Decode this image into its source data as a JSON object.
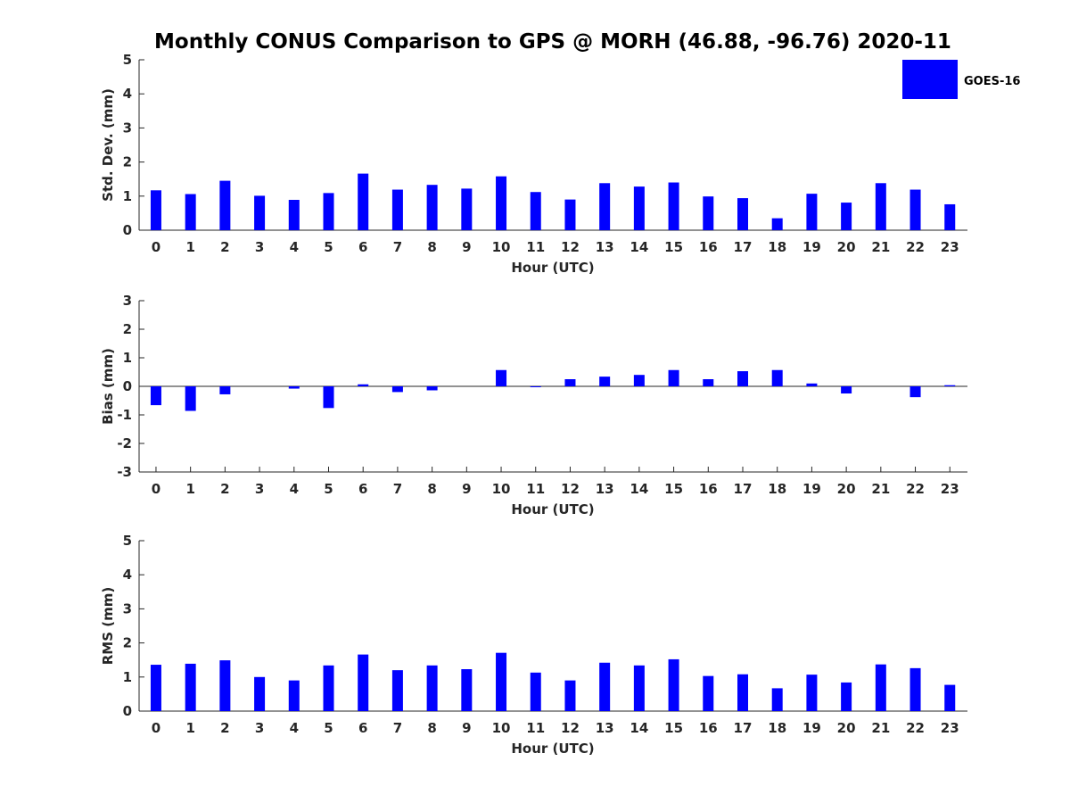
{
  "title": "Monthly CONUS Comparison to GPS @ MORH (46.88, -96.76) 2020-11",
  "colors": {
    "bar": "#0000ff",
    "axis": "#262626"
  },
  "legend": {
    "label": "GOES-16",
    "placement": "top-right"
  },
  "chart_data": [
    {
      "type": "bar",
      "ylabel": "Std. Dev. (mm)",
      "xlabel": "Hour (UTC)",
      "ylim": [
        0,
        5
      ],
      "yticks": [
        0,
        1,
        2,
        3,
        4,
        5
      ],
      "categories": [
        "0",
        "1",
        "2",
        "3",
        "4",
        "5",
        "6",
        "7",
        "8",
        "9",
        "10",
        "11",
        "12",
        "13",
        "14",
        "15",
        "16",
        "17",
        "18",
        "19",
        "20",
        "21",
        "22",
        "23"
      ],
      "series": [
        {
          "name": "GOES-16",
          "values": [
            1.17,
            1.06,
            1.45,
            1.01,
            0.89,
            1.09,
            1.66,
            1.19,
            1.33,
            1.22,
            1.58,
            1.12,
            0.9,
            1.38,
            1.28,
            1.4,
            0.99,
            0.94,
            0.35,
            1.07,
            0.81,
            1.38,
            1.19,
            0.76
          ]
        }
      ]
    },
    {
      "type": "bar",
      "ylabel": "Bias (mm)",
      "xlabel": "Hour (UTC)",
      "ylim": [
        -3,
        3
      ],
      "yticks": [
        -3,
        -2,
        -1,
        0,
        1,
        2,
        3
      ],
      "categories": [
        "0",
        "1",
        "2",
        "3",
        "4",
        "5",
        "6",
        "7",
        "8",
        "9",
        "10",
        "11",
        "12",
        "13",
        "14",
        "15",
        "16",
        "17",
        "18",
        "19",
        "20",
        "21",
        "22",
        "23"
      ],
      "series": [
        {
          "name": "GOES-16",
          "values": [
            -0.66,
            -0.86,
            -0.28,
            0.0,
            -0.08,
            -0.76,
            0.07,
            -0.2,
            -0.14,
            0.0,
            0.57,
            -0.02,
            0.25,
            0.34,
            0.4,
            0.57,
            0.25,
            0.53,
            0.57,
            0.1,
            -0.25,
            0.0,
            -0.38,
            0.04
          ]
        }
      ]
    },
    {
      "type": "bar",
      "ylabel": "RMS (mm)",
      "xlabel": "Hour (UTC)",
      "ylim": [
        0,
        5
      ],
      "yticks": [
        0,
        1,
        2,
        3,
        4,
        5
      ],
      "categories": [
        "0",
        "1",
        "2",
        "3",
        "4",
        "5",
        "6",
        "7",
        "8",
        "9",
        "10",
        "11",
        "12",
        "13",
        "14",
        "15",
        "16",
        "17",
        "18",
        "19",
        "20",
        "21",
        "22",
        "23"
      ],
      "series": [
        {
          "name": "GOES-16",
          "values": [
            1.36,
            1.39,
            1.49,
            1.0,
            0.9,
            1.34,
            1.66,
            1.2,
            1.34,
            1.23,
            1.71,
            1.13,
            0.9,
            1.42,
            1.34,
            1.52,
            1.03,
            1.08,
            0.67,
            1.07,
            0.84,
            1.37,
            1.26,
            0.77
          ]
        }
      ]
    }
  ]
}
